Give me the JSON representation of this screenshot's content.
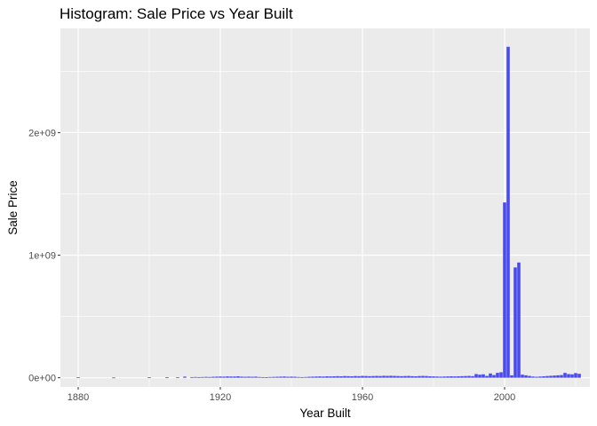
{
  "chart_data": {
    "type": "bar",
    "title": "Histogram: Sale Price vs Year Built",
    "xlabel": "Year Built",
    "ylabel": "Sale Price",
    "xlim": [
      1875,
      2024
    ],
    "ylim": [
      -75000000,
      2850000000
    ],
    "x_ticks": [
      1880,
      1920,
      1960,
      2000
    ],
    "x_tick_labels": [
      "1880",
      "1920",
      "1960",
      "2000"
    ],
    "y_ticks": [
      0,
      1000000000,
      2000000000
    ],
    "y_tick_labels": [
      "0e+00",
      "1e+09",
      "2e+09"
    ],
    "grid": true,
    "bar_color": "#4B4BEB",
    "panel_background": "#EBEBEB",
    "grid_color": "#FFFFFF",
    "x": [
      1880,
      1890,
      1900,
      1905,
      1908,
      1910,
      1912,
      1913,
      1914,
      1915,
      1916,
      1917,
      1918,
      1919,
      1920,
      1921,
      1922,
      1923,
      1924,
      1925,
      1926,
      1927,
      1928,
      1929,
      1930,
      1931,
      1932,
      1933,
      1934,
      1935,
      1936,
      1937,
      1938,
      1939,
      1940,
      1941,
      1942,
      1943,
      1944,
      1945,
      1946,
      1947,
      1948,
      1949,
      1950,
      1951,
      1952,
      1953,
      1954,
      1955,
      1956,
      1957,
      1958,
      1959,
      1960,
      1961,
      1962,
      1963,
      1964,
      1965,
      1966,
      1967,
      1968,
      1969,
      1970,
      1971,
      1972,
      1973,
      1974,
      1975,
      1976,
      1977,
      1978,
      1979,
      1980,
      1981,
      1982,
      1983,
      1984,
      1985,
      1986,
      1987,
      1988,
      1989,
      1990,
      1991,
      1992,
      1993,
      1994,
      1995,
      1996,
      1997,
      1998,
      1999,
      2000,
      2001,
      2002,
      2003,
      2004,
      2005,
      2006,
      2007,
      2008,
      2009,
      2010,
      2011,
      2012,
      2013,
      2014,
      2015,
      2016,
      2017,
      2018,
      2019,
      2020,
      2021
    ],
    "values": [
      3000000,
      2000000,
      3000000,
      4000000,
      3000000,
      9000000,
      5000000,
      6000000,
      5000000,
      6000000,
      7000000,
      6000000,
      8000000,
      9000000,
      10000000,
      9000000,
      11000000,
      10000000,
      10000000,
      12000000,
      9000000,
      8000000,
      9000000,
      8000000,
      9000000,
      6000000,
      5000000,
      4000000,
      6000000,
      7000000,
      8000000,
      9000000,
      10000000,
      8000000,
      9000000,
      8000000,
      6000000,
      5000000,
      6000000,
      8000000,
      9000000,
      10000000,
      11000000,
      10000000,
      12000000,
      11000000,
      12000000,
      13000000,
      12000000,
      14000000,
      13000000,
      12000000,
      14000000,
      13000000,
      15000000,
      14000000,
      13000000,
      14000000,
      15000000,
      14000000,
      16000000,
      15000000,
      16000000,
      15000000,
      14000000,
      13000000,
      14000000,
      15000000,
      13000000,
      12000000,
      14000000,
      15000000,
      14000000,
      12000000,
      11000000,
      10000000,
      9000000,
      10000000,
      11000000,
      12000000,
      11000000,
      12000000,
      13000000,
      14000000,
      15000000,
      13000000,
      30000000,
      25000000,
      28000000,
      15000000,
      35000000,
      22000000,
      40000000,
      45000000,
      1430000000,
      2700000000,
      20000000,
      900000000,
      940000000,
      25000000,
      20000000,
      15000000,
      10000000,
      8000000,
      10000000,
      12000000,
      14000000,
      16000000,
      18000000,
      20000000,
      22000000,
      40000000,
      30000000,
      28000000,
      38000000,
      32000000
    ]
  }
}
